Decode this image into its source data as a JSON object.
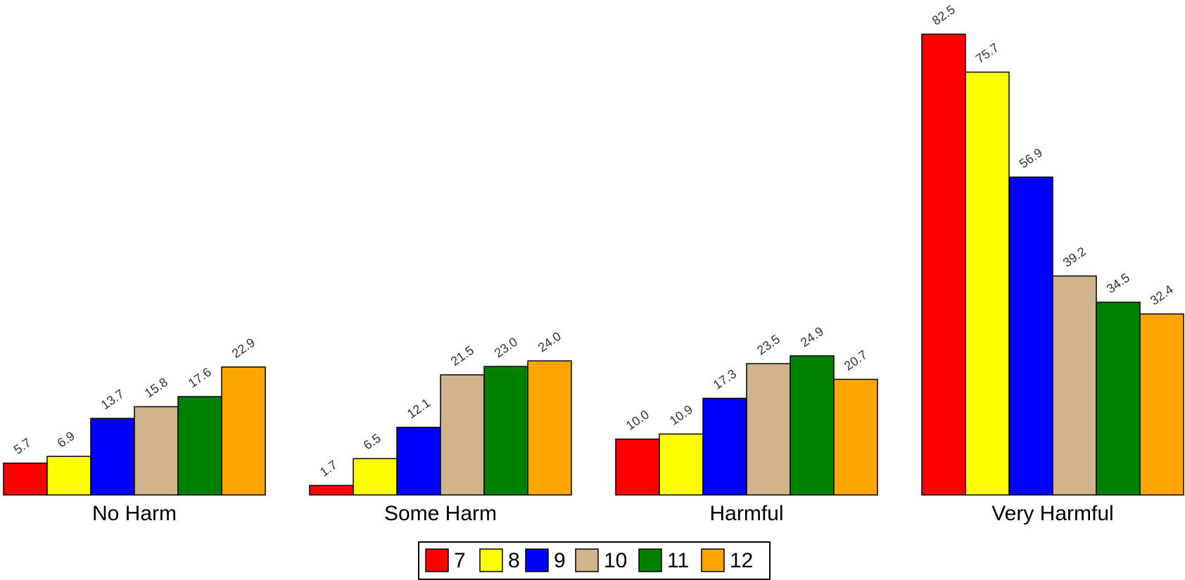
{
  "chart_data": {
    "type": "bar",
    "title": "",
    "xlabel": "",
    "ylabel": "",
    "ylim": [
      0,
      100
    ],
    "grid": false,
    "legend_position": "bottom-center",
    "categories": [
      "No Harm",
      "Some Harm",
      "Harmful",
      "Very Harmful"
    ],
    "series": [
      {
        "name": "7",
        "color": "#ff0000",
        "values": [
          5.7,
          1.7,
          10.0,
          82.5
        ],
        "labels": [
          "5.7",
          "1.7",
          "10.0",
          "82.5"
        ]
      },
      {
        "name": "8",
        "color": "#ffff00",
        "values": [
          6.9,
          6.5,
          10.9,
          75.7
        ],
        "labels": [
          "6.9",
          "6.5",
          "10.9",
          "75.7"
        ]
      },
      {
        "name": "9",
        "color": "#0000ff",
        "values": [
          13.7,
          12.1,
          17.3,
          56.9
        ],
        "labels": [
          "13.7",
          "12.1",
          "17.3",
          "56.9"
        ]
      },
      {
        "name": "10",
        "color": "#d2b48c",
        "values": [
          15.8,
          21.5,
          23.5,
          39.2
        ],
        "labels": [
          "15.8",
          "21.5",
          "23.5",
          "39.2"
        ]
      },
      {
        "name": "11",
        "color": "#008000",
        "values": [
          17.6,
          23.0,
          24.9,
          34.5
        ],
        "labels": [
          "17.6",
          "23.0",
          "24.9",
          "34.5"
        ]
      },
      {
        "name": "12",
        "color": "#ffa500",
        "values": [
          22.9,
          24.0,
          20.7,
          32.4
        ],
        "labels": [
          "22.9",
          "24.0",
          "20.7",
          "32.4"
        ]
      }
    ]
  }
}
